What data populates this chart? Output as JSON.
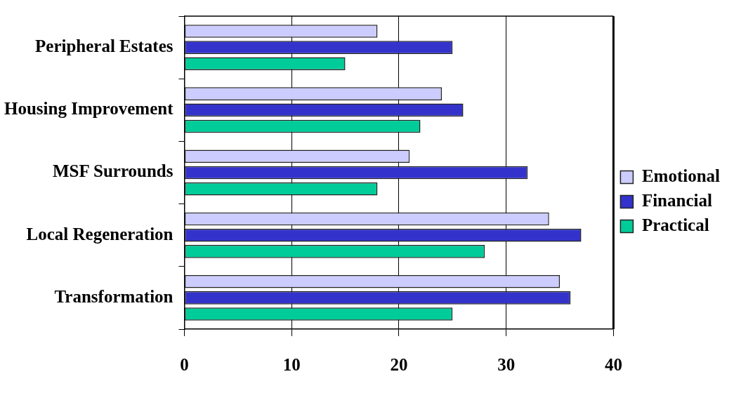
{
  "chart_data": {
    "type": "bar",
    "orientation": "horizontal",
    "categories": [
      "Peripheral Estates",
      "Housing Improvement",
      "MSF Surrounds",
      "Local Regeneration",
      "Transformation"
    ],
    "series": [
      {
        "name": "Emotional",
        "color": "#ccccff",
        "values": [
          18,
          24,
          21,
          34,
          35
        ]
      },
      {
        "name": "Financial",
        "color": "#3333cc",
        "values": [
          25,
          26,
          32,
          37,
          36
        ]
      },
      {
        "name": "Practical",
        "color": "#00cc99",
        "values": [
          15,
          22,
          18,
          28,
          25
        ]
      }
    ],
    "xlim": [
      0,
      40
    ],
    "xticks": [
      0,
      10,
      20,
      30,
      40
    ],
    "grid": "x",
    "legend": "right"
  }
}
